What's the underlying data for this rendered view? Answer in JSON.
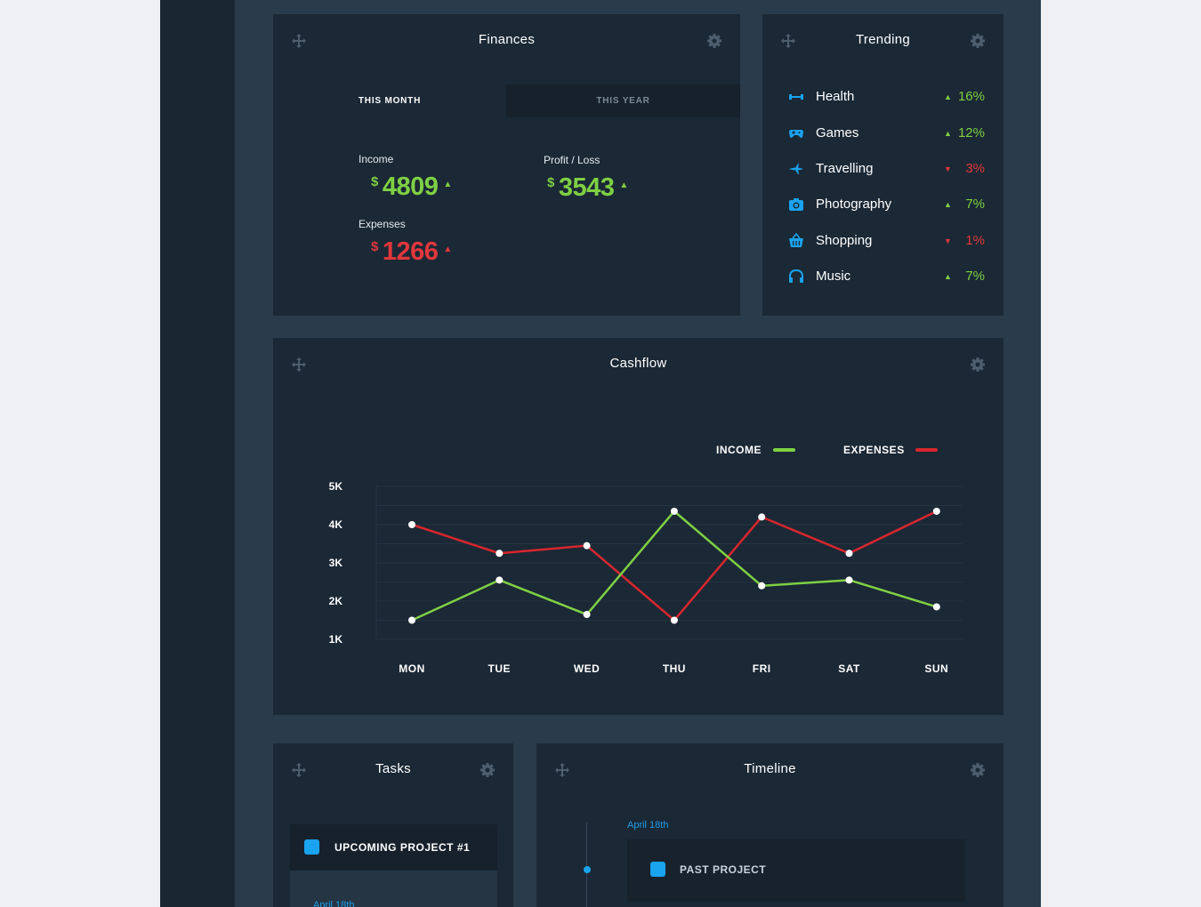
{
  "finances": {
    "title": "Finances",
    "tabs": [
      "THIS MONTH",
      "THIS YEAR"
    ],
    "income": {
      "label": "Income",
      "currency": "$",
      "value": "4809",
      "trend": "up"
    },
    "profit": {
      "label": "Profit / Loss",
      "currency": "$",
      "value": "3543",
      "trend": "up"
    },
    "expenses": {
      "label": "Expenses",
      "currency": "$",
      "value": "1266",
      "trend": "up"
    }
  },
  "trending": {
    "title": "Trending",
    "items": [
      {
        "label": "Health",
        "icon": "dumbbell-icon",
        "trend": "up",
        "value": "16%"
      },
      {
        "label": "Games",
        "icon": "gamepad-icon",
        "trend": "up",
        "value": "12%"
      },
      {
        "label": "Travelling",
        "icon": "airplane-icon",
        "trend": "down",
        "value": "3%"
      },
      {
        "label": "Photography",
        "icon": "camera-icon",
        "trend": "up",
        "value": "7%"
      },
      {
        "label": "Shopping",
        "icon": "basket-icon",
        "trend": "down",
        "value": "1%"
      },
      {
        "label": "Music",
        "icon": "headphones-icon",
        "trend": "up",
        "value": "7%"
      }
    ]
  },
  "cashflow": {
    "title": "Cashflow",
    "legend": {
      "income": "INCOME",
      "expenses": "EXPENSES"
    }
  },
  "chart_data": {
    "type": "line",
    "title": "Cashflow",
    "categories": [
      "MON",
      "TUE",
      "WED",
      "THU",
      "FRI",
      "SAT",
      "SUN"
    ],
    "yticks": [
      "5K",
      "4K",
      "3K",
      "2K",
      "1K"
    ],
    "ytick_values": [
      5000,
      4000,
      3000,
      2000,
      1000
    ],
    "ylim": [
      1000,
      5000
    ],
    "series": [
      {
        "name": "INCOME",
        "color": "#7ed043",
        "values": [
          1500,
          2550,
          1650,
          4350,
          2400,
          2550,
          1850
        ]
      },
      {
        "name": "EXPENSES",
        "color": "#d8262e",
        "values": [
          4000,
          3250,
          3450,
          1500,
          4200,
          3250,
          4350
        ]
      }
    ],
    "legend": "top-right",
    "grid": true
  },
  "tasks": {
    "title": "Tasks",
    "items": [
      {
        "label": "UPCOMING PROJECT #1"
      }
    ],
    "next_date": "April 18th"
  },
  "timeline": {
    "title": "Timeline",
    "date": "April 18th",
    "items": [
      {
        "label": "PAST PROJECT"
      }
    ]
  },
  "colors": {
    "accent": "#1aa3ee",
    "positive": "#7ed043",
    "negative": "#e2373c",
    "panel": "#1b2835",
    "background": "#2a3b4b"
  }
}
